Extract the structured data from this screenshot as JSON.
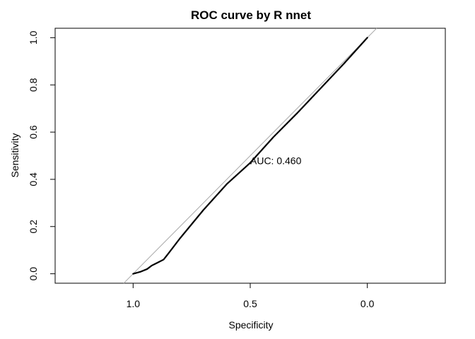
{
  "chart_data": {
    "type": "line",
    "title": "ROC curve by R nnet",
    "xlabel": "Specificity",
    "ylabel": "Sensitivity",
    "xlim": [
      1.333,
      -0.333
    ],
    "ylim": [
      -0.04,
      1.04
    ],
    "x_reversed": true,
    "grid": false,
    "legend": "none",
    "x_ticks": [
      {
        "value": 1.0,
        "label": "1.0"
      },
      {
        "value": 0.5,
        "label": "0.5"
      },
      {
        "value": 0.0,
        "label": "0.0"
      }
    ],
    "y_ticks": [
      {
        "value": 0.0,
        "label": "0.0"
      },
      {
        "value": 0.2,
        "label": "0.2"
      },
      {
        "value": 0.4,
        "label": "0.4"
      },
      {
        "value": 0.6,
        "label": "0.6"
      },
      {
        "value": 0.8,
        "label": "0.8"
      },
      {
        "value": 1.0,
        "label": "1.0"
      }
    ],
    "reference_line": {
      "color": "#aaaaaa",
      "points": [
        {
          "x": 1.04,
          "y": -0.04
        },
        {
          "x": -0.04,
          "y": 1.04
        }
      ]
    },
    "series": [
      {
        "color": "#000000",
        "points": [
          {
            "x": 1.0,
            "y": 0.0
          },
          {
            "x": 0.97,
            "y": 0.008
          },
          {
            "x": 0.94,
            "y": 0.02
          },
          {
            "x": 0.92,
            "y": 0.035
          },
          {
            "x": 0.9,
            "y": 0.045
          },
          {
            "x": 0.87,
            "y": 0.06
          },
          {
            "x": 0.85,
            "y": 0.085
          },
          {
            "x": 0.8,
            "y": 0.15
          },
          {
            "x": 0.7,
            "y": 0.27
          },
          {
            "x": 0.6,
            "y": 0.38
          },
          {
            "x": 0.5,
            "y": 0.47
          },
          {
            "x": 0.4,
            "y": 0.58
          },
          {
            "x": 0.3,
            "y": 0.68
          },
          {
            "x": 0.2,
            "y": 0.785
          },
          {
            "x": 0.1,
            "y": 0.89
          },
          {
            "x": 0.0,
            "y": 1.0
          }
        ]
      }
    ],
    "annotations": [
      {
        "text": "AUC: 0.460",
        "x": 0.5,
        "y": 0.475
      }
    ]
  }
}
